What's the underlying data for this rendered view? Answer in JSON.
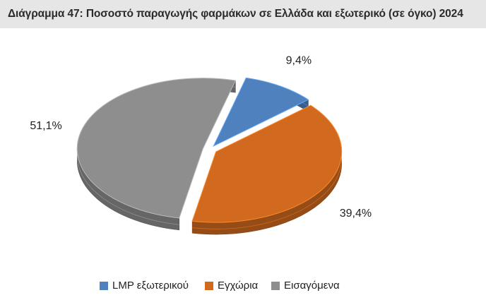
{
  "title": "Διάγραμμα 47: Ποσοστό παραγωγής φαρμάκων σε Ελλάδα και εξωτερικό (σε όγκο) 2024",
  "chart_data": {
    "type": "pie",
    "title": "Διάγραμμα 47: Ποσοστό παραγωγής φαρμάκων σε Ελλάδα και εξωτερικό (σε όγκο) 2024",
    "slices": [
      {
        "name": "LMP εξωτερικού",
        "value": 9.4,
        "label": "9,4%",
        "color": "#4e81bd"
      },
      {
        "name": "Εγχώρια",
        "value": 39.4,
        "label": "39,4%",
        "color": "#d1691e"
      },
      {
        "name": "Εισαγόμενα",
        "value": 51.1,
        "label": "51,1%",
        "color": "#8e8e8e"
      }
    ],
    "legend_position": "bottom",
    "style": "3d-exploded"
  }
}
